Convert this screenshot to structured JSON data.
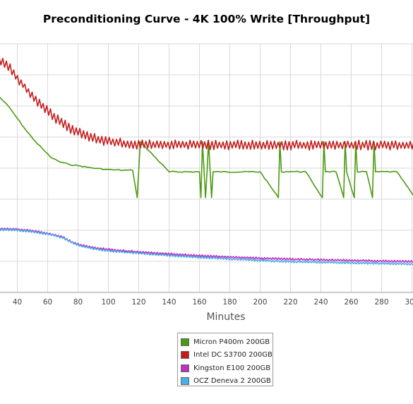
{
  "chart_data": {
    "type": "line",
    "title": "Preconditioning Curve - 4K 100% Write [Throughput]",
    "xlabel": "Minutes",
    "ylabel": "",
    "x_ticks": [
      40,
      60,
      80,
      100,
      120,
      140,
      160,
      180,
      200,
      220,
      240,
      260,
      280,
      300
    ],
    "xlim": [
      28,
      309
    ],
    "grid": true,
    "legend_position": "bottom-center",
    "series": [
      {
        "name": "Micron P400m 200GB",
        "color": "#4a9a10",
        "x": [
          28,
          34,
          40,
          46,
          52,
          58,
          62,
          68,
          74,
          80,
          86,
          92,
          98,
          104,
          110,
          116,
          119,
          120,
          121,
          140,
          160,
          161,
          162,
          164,
          165,
          166,
          168,
          169,
          170,
          200,
          212,
          213,
          214,
          220,
          230,
          241,
          242,
          243,
          250,
          255,
          256,
          257,
          262,
          263,
          264,
          270,
          274,
          275,
          276,
          290,
          302,
          303,
          304,
          306,
          307,
          308,
          309
        ],
        "y": [
          6.3,
          6.0,
          5.6,
          5.2,
          4.85,
          4.55,
          4.35,
          4.2,
          4.12,
          4.08,
          4.03,
          3.99,
          3.96,
          3.94,
          3.93,
          3.93,
          3.05,
          3.92,
          4.85,
          3.88,
          3.88,
          3.05,
          4.85,
          3.05,
          3.88,
          4.85,
          3.05,
          3.88,
          3.88,
          3.88,
          3.05,
          4.85,
          3.88,
          3.89,
          3.88,
          3.05,
          4.85,
          3.88,
          3.88,
          3.05,
          4.85,
          3.88,
          3.05,
          4.85,
          3.88,
          3.89,
          3.05,
          4.85,
          3.88,
          3.88,
          3.05,
          4.85,
          3.88,
          3.05,
          4.85,
          3.88,
          3.88
        ]
      },
      {
        "name": "Intel DC S3700 200GB",
        "color": "#c41c1c",
        "x": [
          28,
          34,
          40,
          46,
          52,
          58,
          64,
          70,
          76,
          82,
          88,
          94,
          100,
          106,
          112,
          120,
          140,
          160,
          180,
          200,
          220,
          240,
          260,
          280,
          300,
          309
        ],
        "y": [
          7.5,
          7.3,
          6.9,
          6.55,
          6.2,
          5.95,
          5.65,
          5.45,
          5.25,
          5.1,
          5.0,
          4.92,
          4.86,
          4.82,
          4.78,
          4.76,
          4.75,
          4.75,
          4.75,
          4.74,
          4.74,
          4.74,
          4.74,
          4.74,
          4.74,
          4.74
        ]
      },
      {
        "name": "Kingston E100 200GB",
        "color": "#c030c0",
        "x": [
          28,
          40,
          50,
          60,
          70,
          76,
          82,
          90,
          100,
          120,
          140,
          160,
          180,
          200,
          220,
          240,
          260,
          280,
          300,
          309
        ],
        "y": [
          2.05,
          2.03,
          1.98,
          1.9,
          1.78,
          1.62,
          1.52,
          1.44,
          1.38,
          1.3,
          1.24,
          1.18,
          1.14,
          1.1,
          1.07,
          1.05,
          1.03,
          1.01,
          0.99,
          0.98
        ]
      },
      {
        "name": "OCZ Deneva 2 200GB",
        "color": "#4aaee8",
        "x": [
          28,
          40,
          50,
          60,
          70,
          76,
          82,
          90,
          100,
          120,
          140,
          160,
          180,
          200,
          220,
          240,
          260,
          280,
          300,
          309
        ],
        "y": [
          2.02,
          2.0,
          1.95,
          1.88,
          1.76,
          1.6,
          1.49,
          1.41,
          1.34,
          1.26,
          1.19,
          1.13,
          1.08,
          1.03,
          0.99,
          0.97,
          0.95,
          0.93,
          0.91,
          0.9
        ]
      }
    ]
  }
}
